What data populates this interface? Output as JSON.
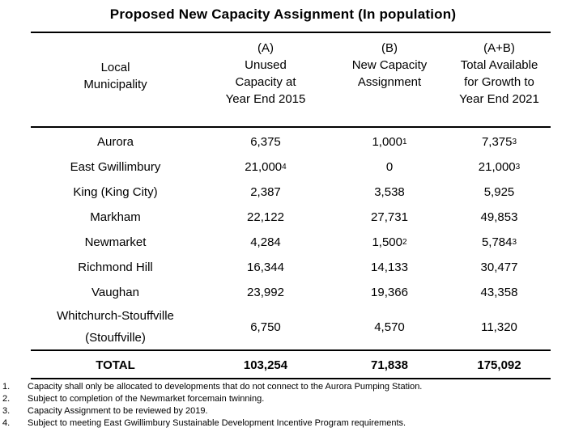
{
  "title": "Proposed New Capacity Assignment (In population)",
  "headers": {
    "col0": [
      "",
      "Local",
      "Municipality",
      ""
    ],
    "col1": [
      "(A)",
      "Unused",
      "Capacity at",
      "Year End 2015"
    ],
    "col2": [
      "(B)",
      "New Capacity",
      "Assignment",
      ""
    ],
    "col3": [
      "(A+B)",
      "Total Available",
      "for Growth to",
      "Year End 2021"
    ]
  },
  "rows": [
    {
      "municipality": "Aurora",
      "unused": "6,375",
      "unused_note": "",
      "new": "1,000",
      "new_note": "1",
      "total": "7,375",
      "total_note": "3"
    },
    {
      "municipality": "East Gwillimbury",
      "unused": "21,000",
      "unused_note": "4",
      "new": "0",
      "new_note": "",
      "total": "21,000",
      "total_note": "3"
    },
    {
      "municipality": "King (King City)",
      "unused": "2,387",
      "unused_note": "",
      "new": "3,538",
      "new_note": "",
      "total": "5,925",
      "total_note": ""
    },
    {
      "municipality": "Markham",
      "unused": "22,122",
      "unused_note": "",
      "new": "27,731",
      "new_note": "",
      "total": "49,853",
      "total_note": ""
    },
    {
      "municipality": "Newmarket",
      "unused": "4,284",
      "unused_note": "",
      "new": "1,500",
      "new_note": "2",
      "total": "5,784",
      "total_note": "3"
    },
    {
      "municipality": "Richmond Hill",
      "unused": "16,344",
      "unused_note": "",
      "new": "14,133",
      "new_note": "",
      "total": "30,477",
      "total_note": ""
    },
    {
      "municipality": "Vaughan",
      "unused": "23,992",
      "unused_note": "",
      "new": "19,366",
      "new_note": "",
      "total": "43,358",
      "total_note": ""
    }
  ],
  "last_row": {
    "municipality_line1": "Whitchurch-Stouffville",
    "municipality_line2": "(Stouffville)",
    "unused": "6,750",
    "new": "4,570",
    "total": "11,320"
  },
  "total_row": {
    "label": "TOTAL",
    "unused": "103,254",
    "new": "71,838",
    "total": "175,092"
  },
  "footnotes": [
    {
      "num": "1.",
      "text": "Capacity shall only be allocated to developments that do not connect to the Aurora Pumping Station."
    },
    {
      "num": "2.",
      "text": "Subject to completion of the Newmarket forcemain twinning."
    },
    {
      "num": "3.",
      "text": "Capacity Assignment to be reviewed by 2019."
    },
    {
      "num": "4.",
      "text": "Subject to meeting East Gwillimbury Sustainable Development Incentive Program requirements."
    }
  ]
}
